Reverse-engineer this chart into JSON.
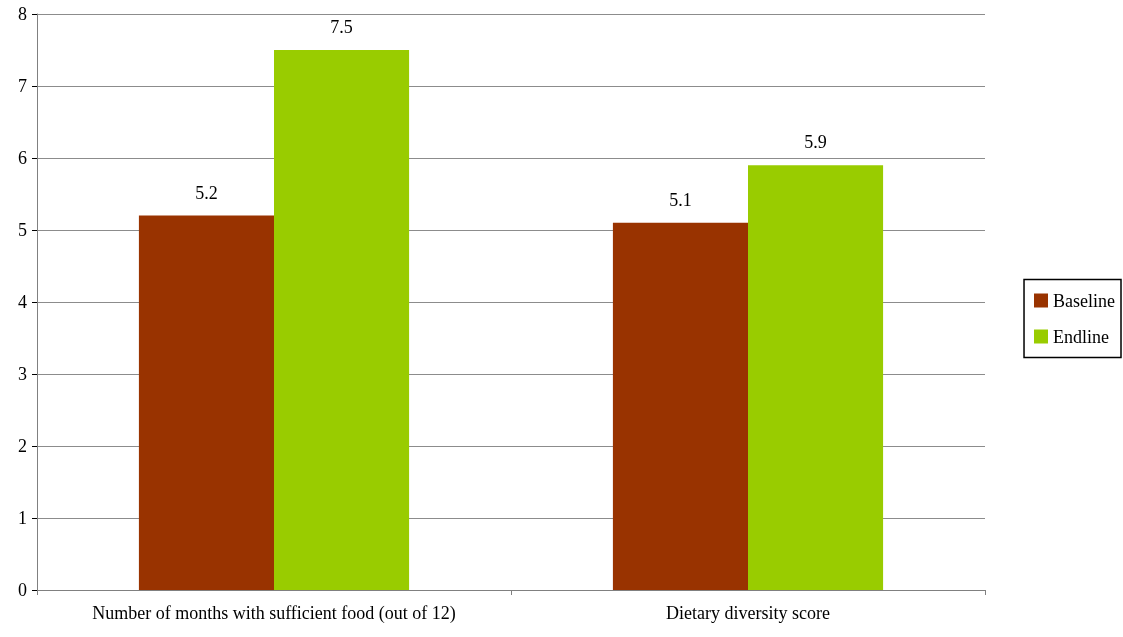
{
  "chart_data": {
    "type": "bar",
    "categories": [
      "Number of months with sufficient food (out of 12)",
      "Dietary diversity score"
    ],
    "series": [
      {
        "name": "Baseline",
        "color": "#993300",
        "values": [
          5.2,
          5.1
        ]
      },
      {
        "name": "Endline",
        "color": "#99cc00",
        "values": [
          7.5,
          5.9
        ]
      }
    ],
    "ylim": [
      0,
      8
    ],
    "yticks": [
      0,
      1,
      2,
      3,
      4,
      5,
      6,
      7,
      8
    ],
    "grid": "y",
    "legend": "right",
    "data_labels": true
  }
}
